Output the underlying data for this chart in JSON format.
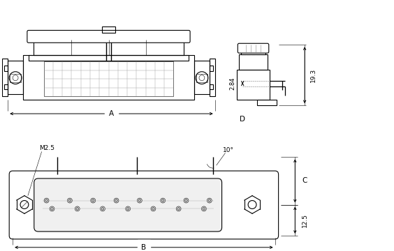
{
  "bg_color": "#ffffff",
  "line_color": "#000000",
  "lw": 0.8,
  "tlw": 0.4,
  "fs": 6.5,
  "label_A": "A",
  "label_B": "B",
  "label_C": "C",
  "label_D": "D",
  "dim_2_84": "2.84",
  "dim_19_3": "19.3",
  "dim_12_5": "12.5",
  "dim_M2_5": "M2.5",
  "dim_10deg": "10°"
}
